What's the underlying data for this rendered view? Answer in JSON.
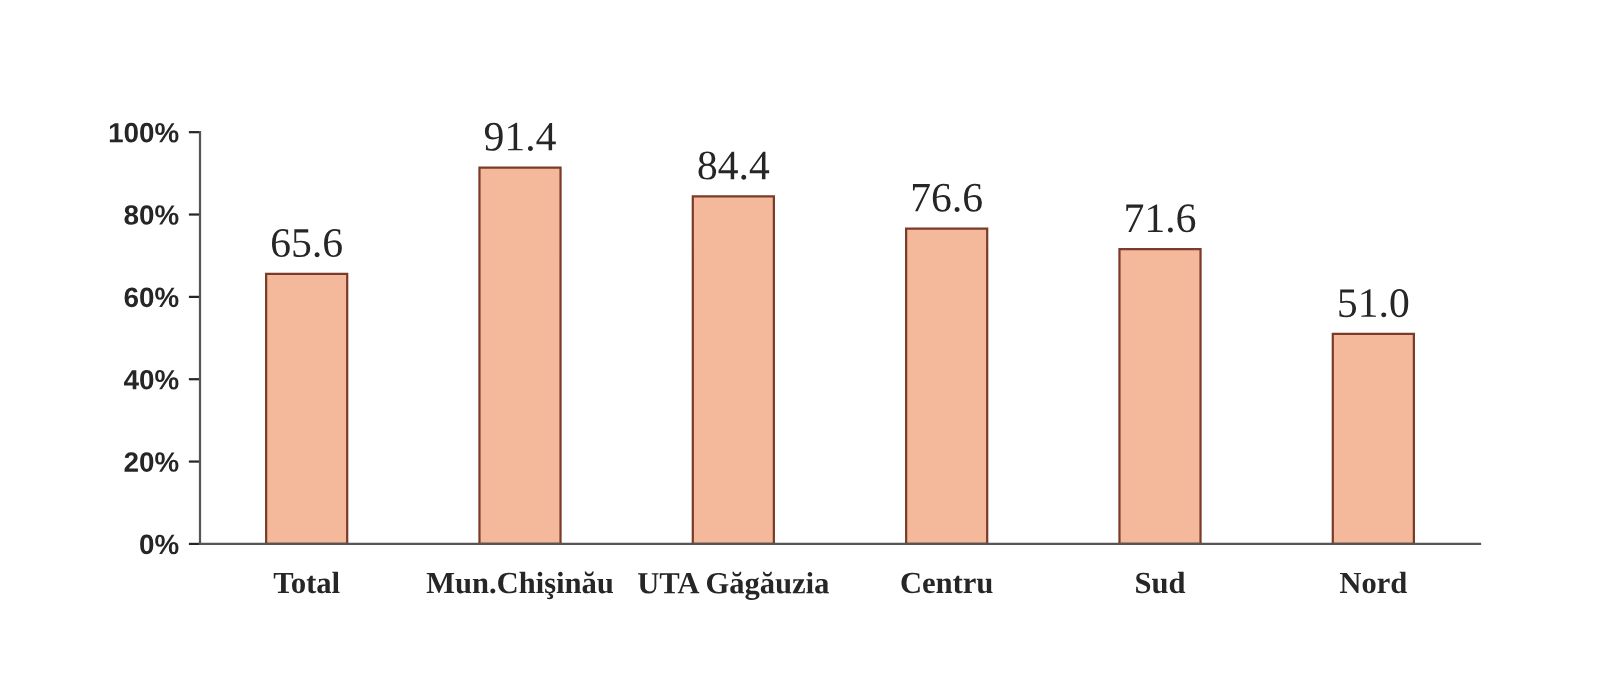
{
  "chart_data": {
    "type": "bar",
    "categories": [
      "Total",
      "Mun.Chişinău",
      "UTA Găgăuzia",
      "Centru",
      "Sud",
      "Nord"
    ],
    "values": [
      65.6,
      91.4,
      84.4,
      76.6,
      71.6,
      51.0
    ],
    "value_labels": [
      "65.6",
      "91.4",
      "84.4",
      "76.6",
      "71.6",
      "51.0"
    ],
    "color": "#f4b89b",
    "ylim": [
      0,
      100
    ],
    "yticks": [
      {
        "value": 0,
        "label": "0%"
      },
      {
        "value": 20,
        "label": "20%"
      },
      {
        "value": 40,
        "label": "40%"
      },
      {
        "value": 60,
        "label": "60%"
      },
      {
        "value": 80,
        "label": "80%"
      },
      {
        "value": 100,
        "label": "100%"
      }
    ],
    "grid": false,
    "legend": false
  }
}
